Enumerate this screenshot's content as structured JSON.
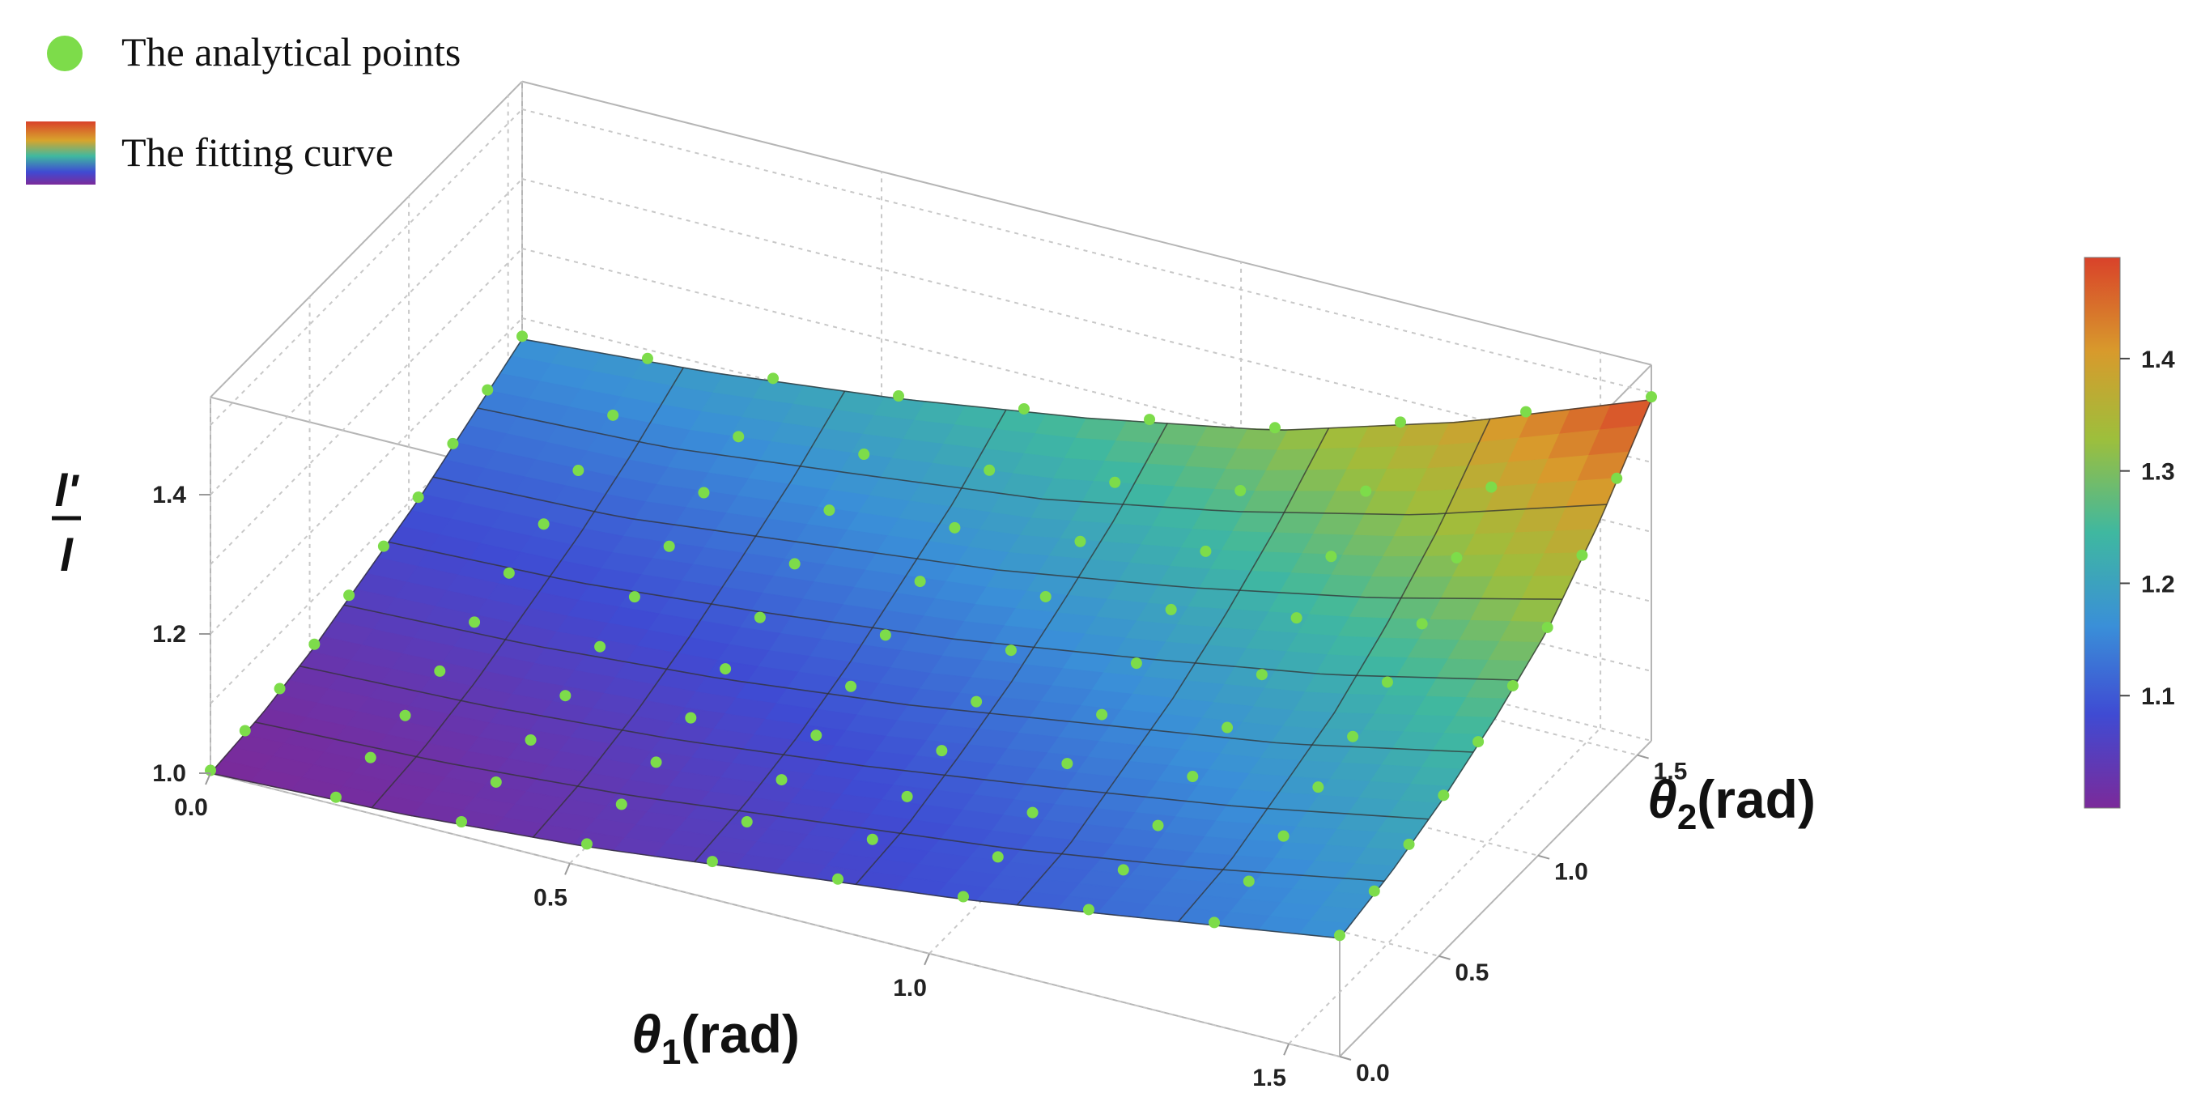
{
  "legend": {
    "points_label": "The analytical points",
    "curve_label": "The fitting curve",
    "points_color": "#7ddc4a"
  },
  "chart_data": {
    "type": "surface3d",
    "title": "",
    "x_axis": {
      "label": "θ1(rad)",
      "symbol": "θ",
      "subscript": "1",
      "unit": "(rad)",
      "range": [
        0,
        1.5708
      ],
      "ticks": [
        "0.0",
        "0.5",
        "1.0",
        "1.5"
      ],
      "tick_values": [
        0,
        0.5,
        1.0,
        1.5
      ]
    },
    "y_axis": {
      "label": "θ2(rad)",
      "symbol": "θ",
      "subscript": "2",
      "unit": "(rad)",
      "range": [
        0,
        1.5708
      ],
      "ticks": [
        "0.0",
        "0.5",
        "1.0",
        "1.5"
      ],
      "tick_values": [
        0,
        0.5,
        1.0,
        1.5
      ]
    },
    "z_axis": {
      "label_numerator": "l'",
      "label_denominator": "l",
      "range": [
        1.0,
        1.49
      ],
      "ticks": [
        "1.0",
        "1.2",
        "1.4"
      ],
      "tick_values": [
        1.0,
        1.2,
        1.4
      ]
    },
    "colorbar": {
      "ticks": [
        "1.1",
        "1.2",
        "1.3",
        "1.4"
      ],
      "tick_values": [
        1.1,
        1.2,
        1.3,
        1.4
      ],
      "range": [
        1.0,
        1.49
      ],
      "colors": [
        "#7b2a9a",
        "#3f4bd3",
        "#3a8fd8",
        "#3fb8a0",
        "#9dbf3c",
        "#d89a2c",
        "#d9422a"
      ]
    },
    "surface": {
      "theta1": [
        0,
        0.2618,
        0.5236,
        0.7854,
        1.0472,
        1.309,
        1.5708
      ],
      "theta2": [
        0,
        0.2618,
        0.5236,
        0.7854,
        1.0472,
        1.309,
        1.5708
      ],
      "z": [
        [
          1.0,
          1.01,
          1.03,
          1.06,
          1.09,
          1.13,
          1.17
        ],
        [
          1.01,
          1.02,
          1.04,
          1.07,
          1.1,
          1.14,
          1.19
        ],
        [
          1.03,
          1.04,
          1.06,
          1.09,
          1.13,
          1.17,
          1.22
        ],
        [
          1.06,
          1.07,
          1.09,
          1.12,
          1.16,
          1.2,
          1.26
        ],
        [
          1.09,
          1.1,
          1.13,
          1.16,
          1.2,
          1.25,
          1.31
        ],
        [
          1.13,
          1.14,
          1.17,
          1.2,
          1.25,
          1.31,
          1.39
        ],
        [
          1.17,
          1.19,
          1.22,
          1.26,
          1.31,
          1.39,
          1.49
        ]
      ]
    },
    "points": {
      "theta1": [
        0,
        0.1745,
        0.3491,
        0.5236,
        0.6981,
        0.8727,
        1.0472,
        1.2217,
        1.3963,
        1.5708
      ],
      "theta2": [
        0,
        0.1745,
        0.3491,
        0.5236,
        0.6981,
        0.8727,
        1.0472,
        1.2217,
        1.3963,
        1.5708
      ]
    }
  }
}
